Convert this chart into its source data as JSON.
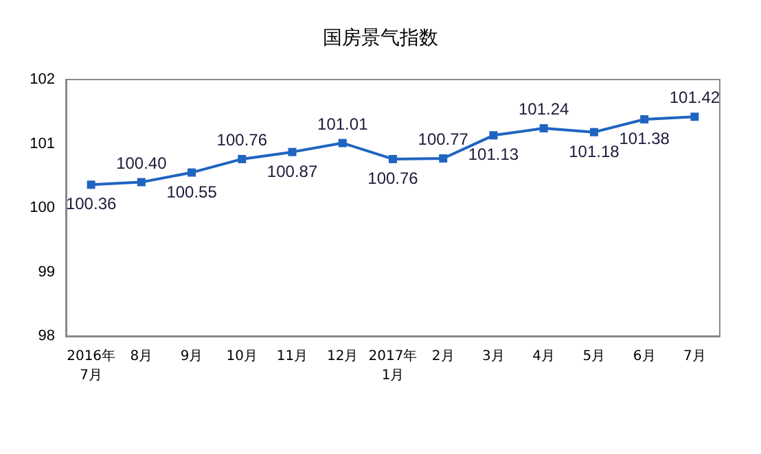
{
  "chart_data": {
    "type": "line",
    "title": "国房景气指数",
    "categories": [
      "2016年\n7月",
      "8月",
      "9月",
      "10月",
      "11月",
      "12月",
      "2017年\n1月",
      "2月",
      "3月",
      "4月",
      "5月",
      "6月",
      "7月"
    ],
    "series": [
      {
        "color": "#1f64c0",
        "values": [
          100.36,
          100.4,
          100.55,
          100.76,
          100.87,
          101.01,
          100.76,
          100.77,
          101.13,
          101.24,
          101.18,
          101.38,
          101.42
        ],
        "value_labels": [
          "100.36",
          "100.40",
          "100.55",
          "100.76",
          "100.87",
          "101.01",
          "100.76",
          "100.77",
          "101.13",
          "101.24",
          "101.18",
          "101.38",
          "101.42"
        ]
      }
    ],
    "ylim": [
      98,
      102
    ],
    "yticks": [
      98,
      99,
      100,
      101,
      102
    ],
    "marker": "square",
    "line_style": "solid",
    "grid": false
  }
}
